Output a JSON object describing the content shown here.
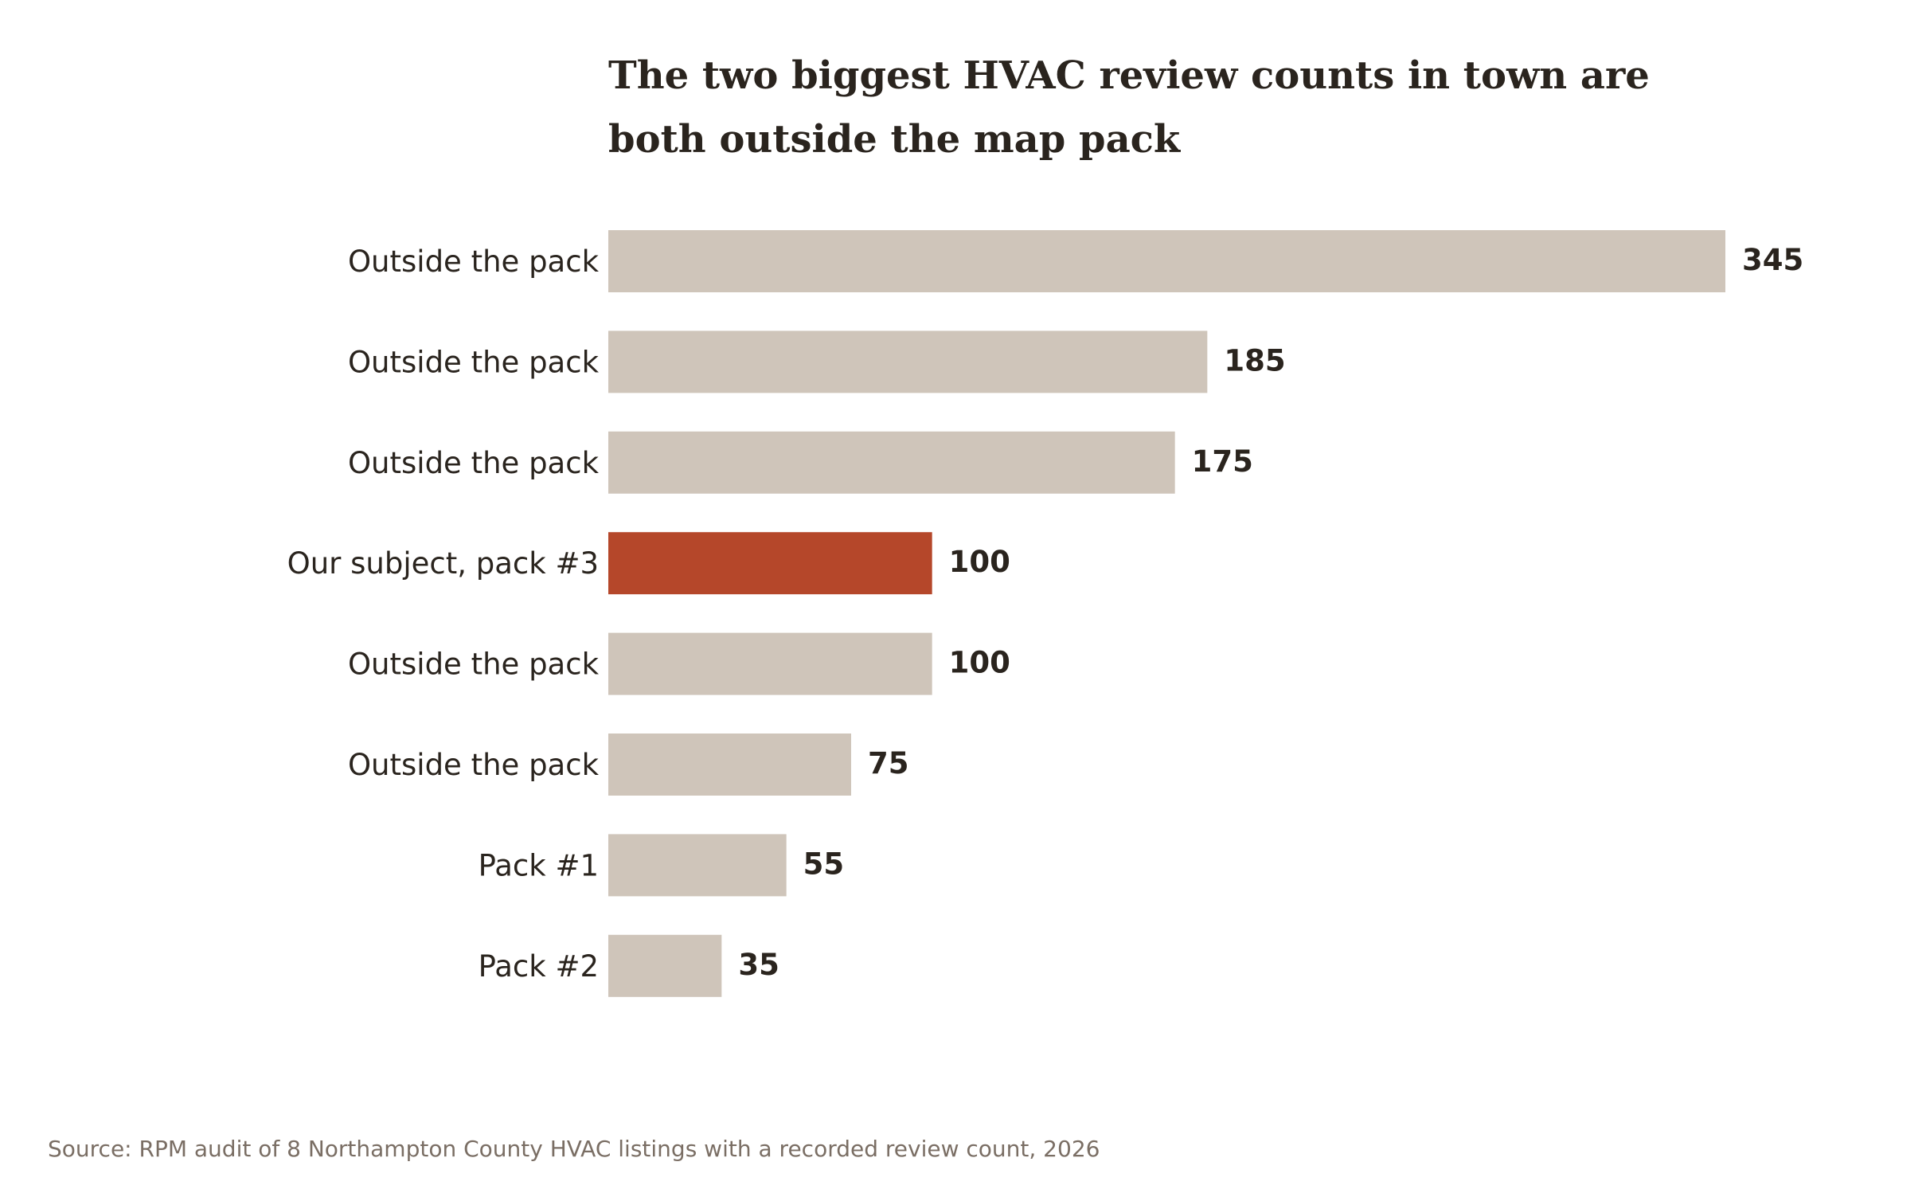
{
  "chart_data": {
    "type": "bar",
    "orientation": "horizontal",
    "title_lines": [
      "The two biggest HVAC review counts in town are",
      "both outside the map pack"
    ],
    "categories": [
      "Outside the pack",
      "Outside the pack",
      "Outside the pack",
      "Our subject, pack #3",
      "Outside the pack",
      "Outside the pack",
      "Pack #1",
      "Pack #2"
    ],
    "values": [
      345,
      185,
      175,
      100,
      100,
      75,
      55,
      35
    ],
    "highlight_index": 3,
    "xlim": [
      0,
      345
    ],
    "xlabel": "",
    "ylabel": "",
    "grid": false,
    "legend": "none",
    "source": "Source: RPM audit of 8 Northampton County HVAC listings with a recorded review count, 2026"
  },
  "colors": {
    "bar_default": "#cfc5ba",
    "bar_highlight": "#b5472a",
    "text": "#2a241e",
    "source_text": "#7a6e64",
    "background": "#ffffff"
  }
}
